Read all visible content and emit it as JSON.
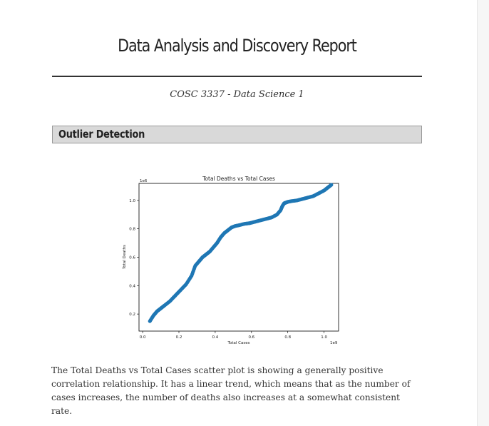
{
  "document": {
    "title": "Data Analysis and Discovery Report",
    "subtitle": "COSC 3337 - Data Science 1",
    "section_heading": "Outlier Detection",
    "paragraph": "The Total Deaths vs Total Cases scatter plot is showing a generally positive correlation relationship. It has a linear trend, which means that as the number of cases increases, the number of deaths also increases at a somewhat consistent rate."
  },
  "chart_data": {
    "type": "scatter",
    "title": "Total Deaths vs Total Cases",
    "xlabel": "Total Cases",
    "ylabel": "Total Deaths",
    "x_scale_label": "1e9",
    "y_scale_label": "1e6",
    "xlim": [
      -0.02,
      1.08
    ],
    "ylim": [
      0.08,
      1.12
    ],
    "xticks": [
      0.0,
      0.2,
      0.4,
      0.6,
      0.8,
      1.0
    ],
    "xtick_labels": [
      "0.0",
      "0.2",
      "0.4",
      "0.6",
      "0.8",
      "1.0"
    ],
    "yticks": [
      0.2,
      0.4,
      0.6,
      0.8,
      1.0
    ],
    "ytick_labels": [
      "0.2",
      "0.4",
      "0.6",
      "0.8",
      "1.0"
    ],
    "grid": false,
    "marker_color": "#1f77b4",
    "x": [
      0.04,
      0.06,
      0.08,
      0.1,
      0.12,
      0.15,
      0.18,
      0.21,
      0.24,
      0.27,
      0.29,
      0.31,
      0.33,
      0.35,
      0.37,
      0.39,
      0.41,
      0.43,
      0.45,
      0.47,
      0.49,
      0.51,
      0.53,
      0.56,
      0.59,
      0.62,
      0.65,
      0.68,
      0.71,
      0.74,
      0.76,
      0.77,
      0.78,
      0.79,
      0.8,
      0.82,
      0.85,
      0.88,
      0.91,
      0.94,
      0.97,
      1.0,
      1.02,
      1.04
    ],
    "y": [
      0.15,
      0.19,
      0.22,
      0.24,
      0.26,
      0.29,
      0.33,
      0.37,
      0.41,
      0.47,
      0.54,
      0.57,
      0.6,
      0.62,
      0.64,
      0.67,
      0.7,
      0.74,
      0.77,
      0.79,
      0.81,
      0.82,
      0.825,
      0.835,
      0.84,
      0.85,
      0.86,
      0.87,
      0.88,
      0.9,
      0.93,
      0.96,
      0.98,
      0.985,
      0.99,
      0.995,
      1.0,
      1.01,
      1.02,
      1.03,
      1.05,
      1.07,
      1.09,
      1.11
    ]
  }
}
